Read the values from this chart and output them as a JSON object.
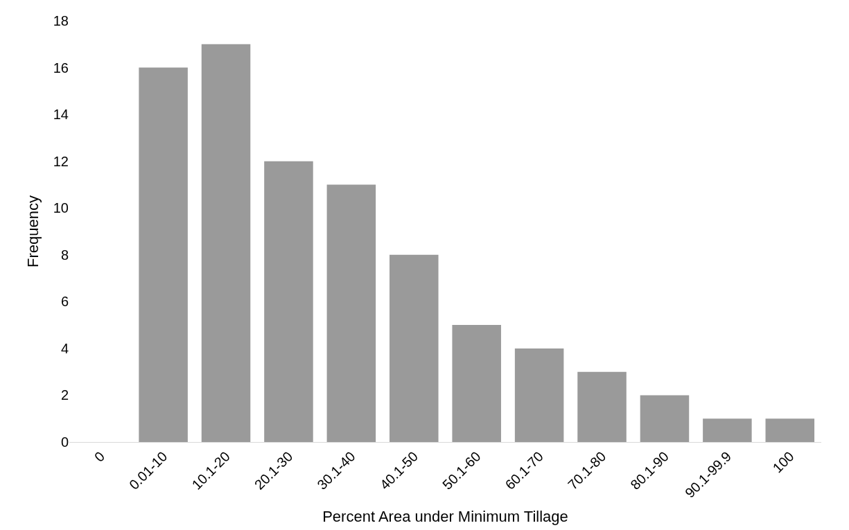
{
  "chart_data": {
    "type": "bar",
    "xlabel": "Percent Area under Minimum Tillage",
    "ylabel": "Frequency",
    "categories": [
      "0",
      "0.01-10",
      "10.1-20",
      "20.1-30",
      "30.1-40",
      "40.1-50",
      "50.1-60",
      "60.1-70",
      "70.1-80",
      "80.1-90",
      "90.1-99.9",
      "100"
    ],
    "values": [
      0,
      16,
      17,
      12,
      11,
      8,
      5,
      4,
      3,
      2,
      1,
      1
    ],
    "color": "#9a9a9a",
    "ylim": [
      0,
      18
    ],
    "yticks": [
      0,
      2,
      4,
      6,
      8,
      10,
      12,
      14,
      16,
      18
    ],
    "grid": false
  }
}
